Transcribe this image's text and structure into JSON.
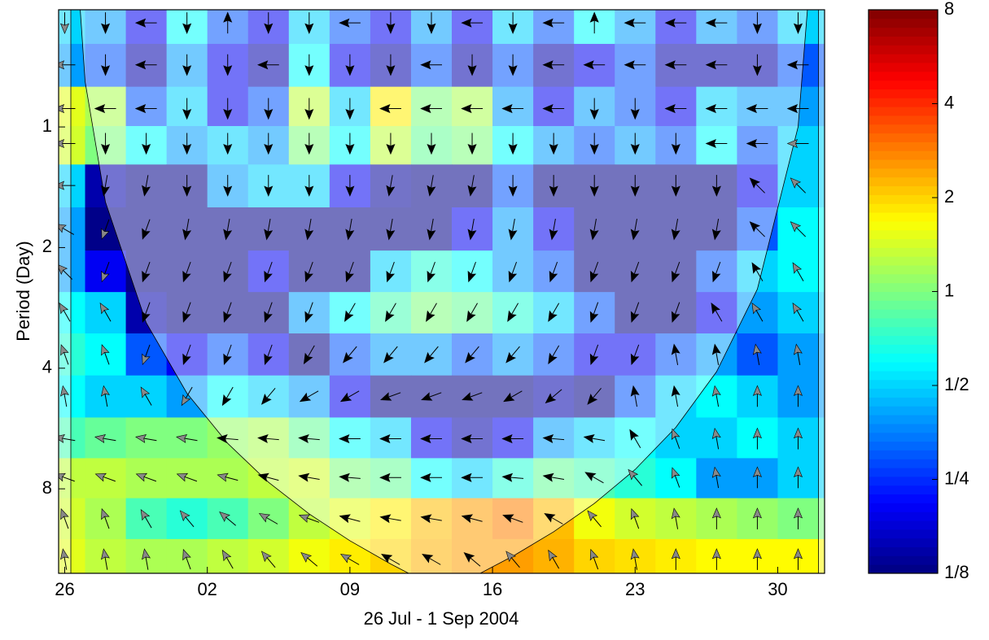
{
  "chart_data": {
    "type": "heatmap",
    "xlabel": "26 Jul - 1 Sep 2004",
    "ylabel": "Period (Day)",
    "colormap": "jet",
    "log_y": true,
    "x": [
      0,
      2,
      4,
      6,
      8,
      10,
      12,
      14,
      16,
      18,
      20,
      22,
      24,
      26,
      28,
      30,
      32,
      34,
      36
    ],
    "y": [
      0.55,
      0.7,
      0.9,
      1.1,
      1.4,
      1.8,
      2.3,
      2.9,
      3.7,
      4.7,
      6,
      7.5,
      9.5,
      12
    ],
    "values": [
      [
        0.5,
        0.4,
        0.2,
        0.6,
        0.3,
        0.2,
        0.5,
        0.3,
        0.2,
        0.4,
        0.2,
        0.5,
        0.3,
        0.6,
        0.4,
        0.2,
        0.4,
        0.3,
        0.5
      ],
      [
        0.4,
        0.3,
        0.15,
        0.4,
        0.2,
        0.15,
        0.6,
        0.2,
        0.15,
        0.3,
        0.15,
        0.3,
        0.15,
        0.2,
        0.3,
        0.15,
        0.15,
        0.15,
        0.3
      ],
      [
        1.5,
        1.2,
        0.3,
        0.5,
        0.2,
        0.3,
        1.3,
        0.5,
        1.8,
        1.0,
        1.2,
        0.4,
        0.2,
        0.4,
        0.3,
        0.2,
        0.5,
        0.4,
        0.4
      ],
      [
        1.4,
        1.0,
        0.6,
        0.4,
        0.5,
        0.4,
        1.0,
        0.6,
        1.3,
        0.9,
        1.0,
        0.6,
        0.4,
        0.3,
        0.4,
        0.3,
        0.6,
        0.3,
        0.5
      ],
      [
        0.5,
        0.15,
        0.13,
        0.13,
        0.4,
        0.5,
        0.5,
        0.2,
        0.14,
        0.13,
        0.13,
        0.3,
        0.13,
        0.13,
        0.13,
        0.13,
        0.13,
        0.2,
        0.5
      ],
      [
        0.4,
        0.13,
        0.13,
        0.13,
        0.13,
        0.13,
        0.13,
        0.13,
        0.13,
        0.13,
        0.2,
        0.4,
        0.2,
        0.13,
        0.13,
        0.13,
        0.13,
        0.3,
        0.6
      ],
      [
        0.4,
        0.2,
        0.13,
        0.13,
        0.13,
        0.2,
        0.13,
        0.13,
        0.5,
        0.7,
        0.6,
        0.4,
        0.3,
        0.13,
        0.13,
        0.13,
        0.3,
        0.5,
        0.6
      ],
      [
        0.6,
        0.5,
        0.15,
        0.13,
        0.13,
        0.13,
        0.4,
        0.6,
        0.8,
        1.0,
        0.9,
        0.7,
        0.5,
        0.3,
        0.13,
        0.13,
        0.2,
        0.4,
        0.5
      ],
      [
        0.7,
        0.6,
        0.3,
        0.2,
        0.3,
        0.2,
        0.13,
        0.3,
        0.4,
        0.4,
        0.3,
        0.4,
        0.3,
        0.2,
        0.2,
        0.3,
        0.4,
        0.3,
        0.4
      ],
      [
        0.6,
        0.5,
        0.5,
        0.4,
        0.6,
        0.5,
        0.4,
        0.2,
        0.13,
        0.13,
        0.13,
        0.13,
        0.15,
        0.13,
        0.3,
        0.5,
        0.6,
        0.5,
        0.4
      ],
      [
        0.8,
        0.9,
        1.0,
        1.0,
        1.1,
        1.2,
        0.9,
        0.6,
        0.5,
        0.2,
        0.15,
        0.2,
        0.4,
        0.5,
        0.6,
        0.5,
        0.5,
        0.6,
        0.5
      ],
      [
        1.3,
        1.3,
        1.2,
        1.2,
        1.2,
        1.3,
        1.4,
        1.0,
        0.9,
        0.6,
        0.5,
        0.7,
        0.9,
        0.8,
        0.7,
        0.6,
        0.4,
        0.4,
        0.5
      ],
      [
        1.4,
        1.2,
        0.8,
        0.7,
        0.8,
        1.0,
        1.3,
        1.5,
        1.8,
        2.2,
        2.5,
        2.8,
        2.2,
        1.6,
        1.4,
        1.3,
        1.2,
        1.1,
        1.0
      ],
      [
        1.5,
        1.3,
        1.2,
        1.2,
        1.3,
        1.4,
        1.6,
        1.8,
        2.0,
        2.3,
        2.5,
        2.5,
        2.3,
        2.0,
        1.9,
        1.8,
        1.7,
        1.7,
        1.7
      ]
    ],
    "phase": [
      [
        -90,
        -90,
        180,
        -90,
        90,
        -90,
        -90,
        180,
        -90,
        -90,
        180,
        -90,
        180,
        90,
        180,
        180,
        180,
        -90,
        -90
      ],
      [
        180,
        -90,
        180,
        -90,
        -90,
        180,
        -90,
        -90,
        -90,
        180,
        -90,
        -90,
        180,
        180,
        180,
        180,
        180,
        -90,
        180
      ],
      [
        180,
        180,
        180,
        -90,
        -90,
        -90,
        -90,
        -90,
        180,
        180,
        180,
        180,
        180,
        -90,
        -90,
        180,
        180,
        180,
        180
      ],
      [
        180,
        -90,
        -90,
        -90,
        -90,
        -90,
        -90,
        -90,
        -90,
        -90,
        -90,
        -90,
        -90,
        -90,
        -90,
        -90,
        180,
        180,
        180
      ],
      [
        180,
        -100,
        -100,
        -90,
        -90,
        -90,
        -90,
        -90,
        -100,
        -100,
        -100,
        -90,
        -90,
        -90,
        -90,
        -90,
        -90,
        135,
        135
      ],
      [
        150,
        -110,
        -110,
        -100,
        -100,
        -100,
        -100,
        -100,
        -100,
        -100,
        -100,
        -100,
        -100,
        -100,
        -100,
        -100,
        -100,
        135,
        135
      ],
      [
        135,
        -110,
        -110,
        -110,
        -110,
        -110,
        -110,
        -110,
        -110,
        -110,
        -110,
        -110,
        -110,
        -110,
        -110,
        -110,
        -110,
        120,
        120
      ],
      [
        120,
        120,
        -110,
        -110,
        -110,
        -110,
        -110,
        -120,
        -120,
        -120,
        -120,
        -120,
        -120,
        -110,
        -110,
        -110,
        120,
        120,
        120
      ],
      [
        110,
        110,
        -110,
        -110,
        -110,
        -110,
        -120,
        -130,
        -130,
        -130,
        -130,
        -130,
        -120,
        -110,
        -110,
        100,
        100,
        100,
        100
      ],
      [
        100,
        100,
        120,
        -120,
        -120,
        -130,
        -150,
        -150,
        -160,
        -160,
        -160,
        -150,
        -140,
        -130,
        100,
        100,
        100,
        90,
        90
      ],
      [
        170,
        170,
        170,
        170,
        175,
        175,
        175,
        180,
        180,
        180,
        180,
        180,
        175,
        170,
        120,
        110,
        100,
        90,
        90
      ],
      [
        160,
        160,
        160,
        160,
        165,
        165,
        170,
        175,
        180,
        180,
        180,
        175,
        170,
        150,
        130,
        110,
        100,
        90,
        90
      ],
      [
        110,
        110,
        120,
        130,
        140,
        150,
        160,
        165,
        170,
        170,
        165,
        160,
        150,
        130,
        110,
        100,
        90,
        90,
        90
      ],
      [
        100,
        100,
        100,
        110,
        120,
        130,
        140,
        150,
        150,
        150,
        140,
        130,
        120,
        110,
        100,
        90,
        90,
        90,
        90
      ]
    ],
    "coi": {
      "x": [
        0.3,
        1,
        2,
        4,
        6,
        8,
        10,
        12,
        14,
        16,
        17,
        18,
        19,
        20,
        22,
        24,
        26,
        28,
        30,
        32,
        34,
        36,
        37
      ],
      "y": [
        0.23,
        0.77,
        1.54,
        3.08,
        4.62,
        6.16,
        7.7,
        9.24,
        10.78,
        12.32,
        13.09,
        13.86,
        14.09,
        13.32,
        11.78,
        10.24,
        8.7,
        7.16,
        5.62,
        4.08,
        2.54,
        1.0,
        0.23
      ]
    },
    "xlim": [
      -0.3,
      37.3
    ],
    "ylim": [
      0.51,
      13
    ],
    "xticks": [
      {
        "value": 0,
        "label": "26"
      },
      {
        "value": 7,
        "label": "02"
      },
      {
        "value": 14,
        "label": "09"
      },
      {
        "value": 21,
        "label": "16"
      },
      {
        "value": 28,
        "label": "23"
      },
      {
        "value": 35,
        "label": "30"
      }
    ],
    "yticks": [
      1,
      2,
      4,
      8
    ],
    "clim": [
      0.125,
      8
    ],
    "colorbar_ticks": [
      {
        "value": 0.125,
        "label": "1/8"
      },
      {
        "value": 0.25,
        "label": "1/4"
      },
      {
        "value": 0.5,
        "label": "1/2"
      },
      1,
      2,
      4,
      8
    ]
  }
}
